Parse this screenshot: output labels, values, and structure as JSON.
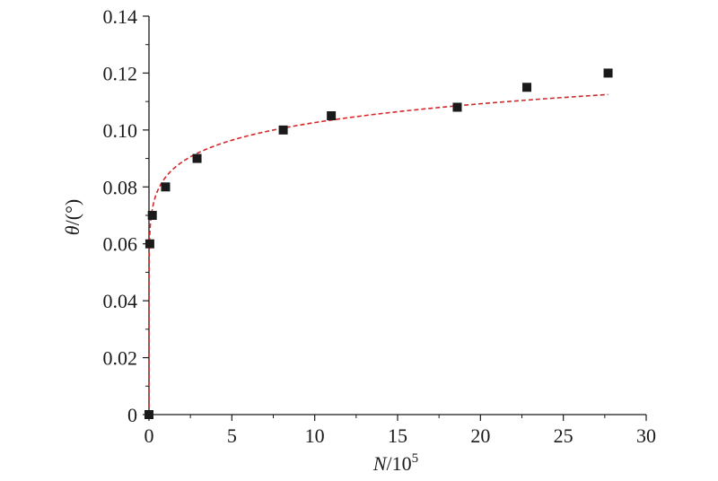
{
  "chart_data": {
    "type": "scatter",
    "xlabel": {
      "var": "N",
      "rest": "/10",
      "sup": "5"
    },
    "ylabel": {
      "var": "θ",
      "rest": "/(°)"
    },
    "xlim": [
      0,
      30
    ],
    "ylim": [
      0,
      0.14
    ],
    "xticks": [
      {
        "value": 0,
        "label": "0"
      },
      {
        "value": 5,
        "label": "5"
      },
      {
        "value": 10,
        "label": "10"
      },
      {
        "value": 15,
        "label": "15"
      },
      {
        "value": 20,
        "label": "20"
      },
      {
        "value": 25,
        "label": "25"
      },
      {
        "value": 30,
        "label": "30"
      }
    ],
    "yticks": [
      {
        "value": 0,
        "label": "0"
      },
      {
        "value": 0.02,
        "label": "0.02"
      },
      {
        "value": 0.04,
        "label": "0.04"
      },
      {
        "value": 0.06,
        "label": "0.06"
      },
      {
        "value": 0.08,
        "label": "0.08"
      },
      {
        "value": 0.1,
        "label": "0.10"
      },
      {
        "value": 0.12,
        "label": "0.12"
      },
      {
        "value": 0.14,
        "label": "0.14"
      }
    ],
    "grid": false,
    "legend": "none",
    "series": [
      {
        "kind": "scatter",
        "marker": "square",
        "color": "#1a1a1a",
        "points": [
          {
            "x": 0,
            "y": 0
          },
          {
            "x": 0.05,
            "y": 0.06
          },
          {
            "x": 0.2,
            "y": 0.07
          },
          {
            "x": 1,
            "y": 0.08
          },
          {
            "x": 2.9,
            "y": 0.09
          },
          {
            "x": 8.1,
            "y": 0.1
          },
          {
            "x": 11,
            "y": 0.105
          },
          {
            "x": 18.6,
            "y": 0.108
          },
          {
            "x": 22.8,
            "y": 0.115
          },
          {
            "x": 27.7,
            "y": 0.12
          }
        ]
      },
      {
        "kind": "fit",
        "style": "dashed",
        "color": "#d62728",
        "model": "power",
        "a": 0.0834,
        "b": 0.09,
        "x_range": [
          0,
          27.7
        ]
      }
    ]
  }
}
